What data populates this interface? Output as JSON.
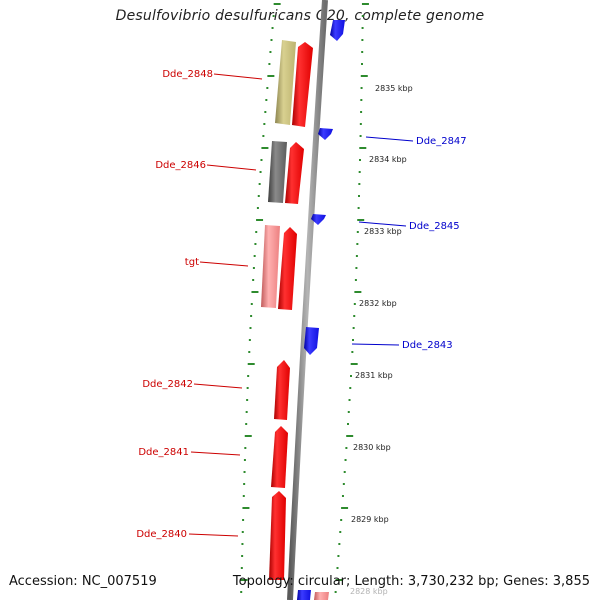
{
  "title": "Desulfovibrio desulfuricans G20, complete genome",
  "footer": {
    "accession": "Accession: NC_007519",
    "topology": "Topology: circular; Length: 3,730,232 bp; Genes: 3,855"
  },
  "scale_labels": [
    {
      "text": "2835 kbp",
      "kbp": 2835
    },
    {
      "text": "2834 kbp",
      "kbp": 2834
    },
    {
      "text": "2833 kbp",
      "kbp": 2833
    },
    {
      "text": "2832 kbp",
      "kbp": 2832
    },
    {
      "text": "2831 kbp",
      "kbp": 2831
    },
    {
      "text": "2830 kbp",
      "kbp": 2830
    },
    {
      "text": "2829 kbp",
      "kbp": 2829
    },
    {
      "text": "2828 kbp",
      "kbp": 2828
    }
  ],
  "gene_labels": {
    "left": [
      "Dde_2848",
      "Dde_2846",
      "tgt",
      "Dde_2842",
      "Dde_2841",
      "Dde_2840"
    ],
    "right": [
      "Dde_2847",
      "Dde_2845",
      "Dde_2843"
    ]
  },
  "colors": {
    "forward_cds": "#ff0000",
    "reverse_cds": "#1515f0",
    "cog_khaki": "#c9c07a",
    "cog_gray": "#6e6e6e",
    "cog_pink": "#f08a8a",
    "backbone": "#8c8c8c",
    "tick": "#2e8b2e",
    "left_label": "#cc0000",
    "right_label": "#0000cc"
  }
}
